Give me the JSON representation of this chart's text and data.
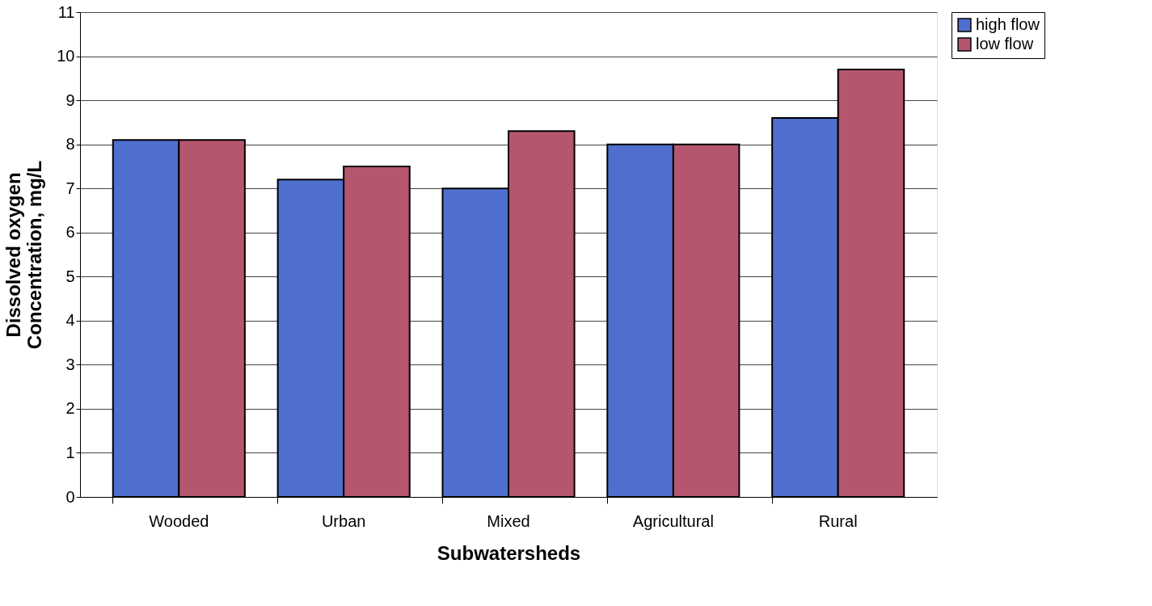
{
  "chart_data": {
    "type": "bar",
    "xlabel": "Subwatersheds",
    "ylabel": "Dissolved oxygen\nConcentration, mg/L",
    "categories": [
      "Wooded",
      "Urban",
      "Mixed",
      "Agricultural",
      "Rural"
    ],
    "series": [
      {
        "name": "high flow",
        "color": "#4f6fcf",
        "values": [
          8.1,
          7.2,
          7.0,
          8.0,
          8.6
        ]
      },
      {
        "name": "low flow",
        "color": "#b5566f",
        "values": [
          8.1,
          7.5,
          8.3,
          8.0,
          9.7
        ]
      }
    ],
    "ylim": [
      0,
      11
    ],
    "yticks": [
      0,
      1,
      2,
      3,
      4,
      5,
      6,
      7,
      8,
      9,
      10,
      11
    ],
    "grid": "y",
    "legend": "right"
  }
}
